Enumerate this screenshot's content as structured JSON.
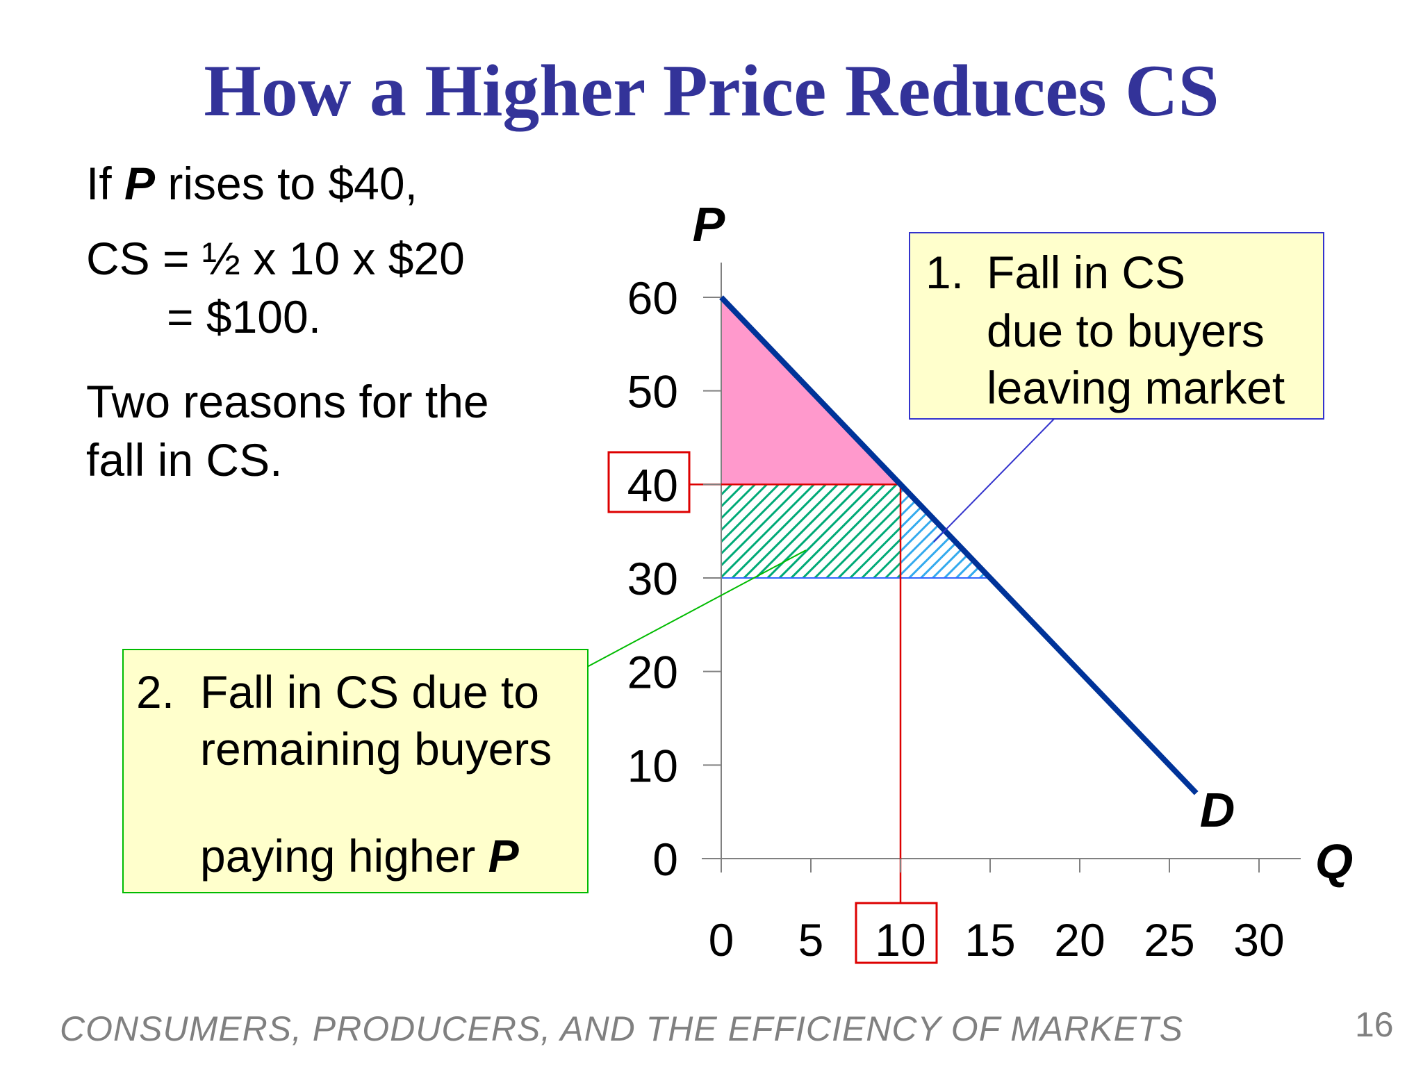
{
  "slide": {
    "title": "How a Higher Price Reduces CS",
    "left_text": {
      "line1_pre": "If ",
      "line1_p": "P",
      "line1_post": " rises to $40,",
      "line2": "CS = ½ x 10 x $20",
      "line3": "= $100.",
      "line4": "Two reasons for the",
      "line5": "fall in CS."
    },
    "callout1": {
      "number": "1.",
      "lines": [
        "Fall in CS",
        "due to buyers",
        "leaving market"
      ]
    },
    "callout2": {
      "number": "2.",
      "lines": [
        "Fall in CS due to",
        "remaining buyers",
        "paying higher "
      ],
      "p_label": "P"
    },
    "footer": "CONSUMERS, PRODUCERS, AND THE EFFICIENCY OF MARKETS",
    "page_number": "16"
  },
  "chart_data": {
    "type": "line",
    "y_axis_label": "P",
    "x_axis_label": "Q",
    "curve_label": "D",
    "xlim": [
      0,
      30
    ],
    "ylim": [
      0,
      60
    ],
    "x_ticks": [
      0,
      5,
      10,
      15,
      20,
      25,
      30
    ],
    "y_ticks": [
      0,
      10,
      20,
      30,
      40,
      50,
      60
    ],
    "demand_curve": {
      "name": "D",
      "points": [
        [
          0,
          60
        ],
        [
          26.5,
          7
        ]
      ],
      "color": "#003399"
    },
    "highlighted_price": 40,
    "highlighted_quantity": 10,
    "regions": [
      {
        "name": "remaining consumer surplus",
        "vertices": [
          [
            0,
            60
          ],
          [
            0,
            40
          ],
          [
            10,
            40
          ]
        ],
        "color": "#ff99cc"
      },
      {
        "name": "fall in CS from remaining buyers paying higher price",
        "vertices": [
          [
            0,
            40
          ],
          [
            10,
            40
          ],
          [
            10,
            30
          ],
          [
            0,
            30
          ]
        ],
        "color": "#00aa77",
        "pattern": "hatch"
      },
      {
        "name": "fall in CS from buyers leaving market",
        "vertices": [
          [
            10,
            40
          ],
          [
            15,
            30
          ],
          [
            10,
            30
          ]
        ],
        "color": "#33aaee",
        "pattern": "hatch"
      }
    ],
    "colors": {
      "axis": "#808080",
      "guide": "#dd0000",
      "callout1_border": "#3333cc",
      "callout2_border": "#00bb00",
      "title": "#333399"
    }
  }
}
